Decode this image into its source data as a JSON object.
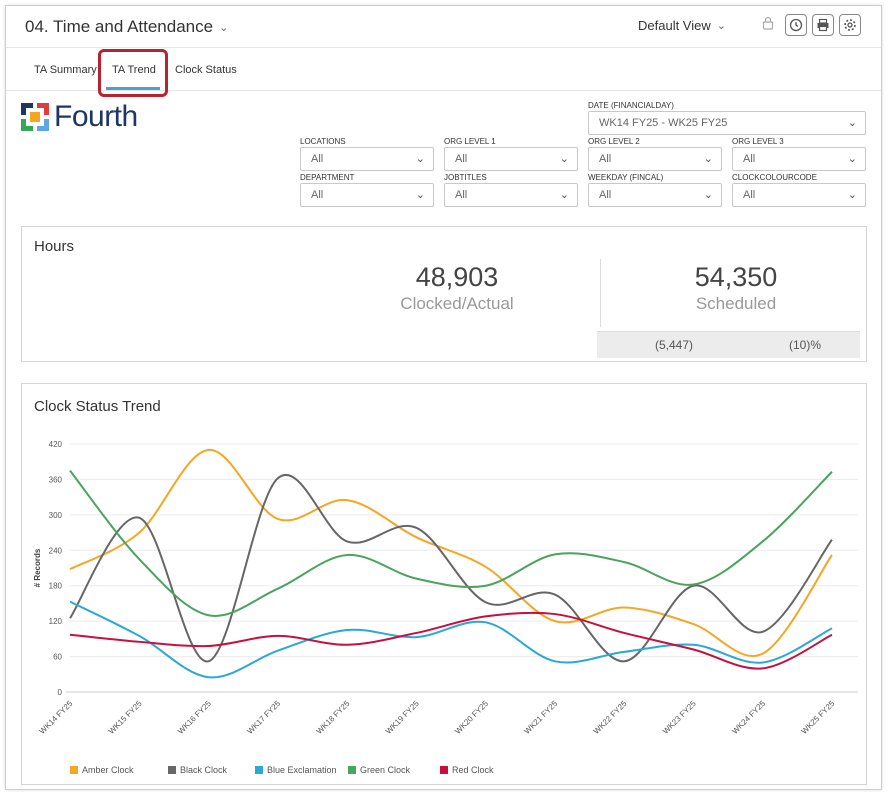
{
  "header": {
    "title": "04. Time and Attendance",
    "view_label": "Default View"
  },
  "tabs": [
    {
      "label": "TA Summary"
    },
    {
      "label": "TA Trend"
    },
    {
      "label": "Clock Status"
    }
  ],
  "logo": {
    "text": "Fourth"
  },
  "filters": {
    "date": {
      "label": "DATE (FINANCIALDAY)",
      "value": "WK14 FY25 - WK25 FY25"
    },
    "locations": {
      "label": "LOCATIONS",
      "value": "All"
    },
    "org_level_1": {
      "label": "ORG LEVEL 1",
      "value": "All"
    },
    "org_level_2": {
      "label": "ORG LEVEL 2",
      "value": "All"
    },
    "org_level_3": {
      "label": "ORG LEVEL 3",
      "value": "All"
    },
    "department": {
      "label": "DEPARTMENT",
      "value": "All"
    },
    "jobtitles": {
      "label": "JOBTITLES",
      "value": "All"
    },
    "weekday": {
      "label": "WEEKDAY (FINCAL)",
      "value": "All"
    },
    "clockcolourcode": {
      "label": "CLOCKCOLOURCODE",
      "value": "All"
    }
  },
  "hours": {
    "title": "Hours",
    "clocked_value": "48,903",
    "clocked_label": "Clocked/Actual",
    "scheduled_value": "54,350",
    "scheduled_label": "Scheduled",
    "variance": "(5,447)",
    "variance_pct": "(10)%"
  },
  "trend_panel": {
    "title": "Clock Status Trend"
  },
  "chart_data": {
    "type": "line",
    "title": "Clock Status Trend",
    "ylabel": "# Records",
    "xlabel": "",
    "ylim": [
      0,
      420
    ],
    "yticks": [
      0,
      60,
      120,
      180,
      240,
      300,
      360,
      420
    ],
    "x": [
      "WK14 FY25",
      "WK15 FY25",
      "WK16 FY25",
      "WK17 FY25",
      "WK18 FY25",
      "WK19 FY25",
      "WK20 FY25",
      "WK21 FY25",
      "WK22 FY25",
      "WK23 FY25",
      "WK24 FY25",
      "WK25 FY25"
    ],
    "series": [
      {
        "name": "Amber Clock",
        "color": "#f5a623",
        "values": [
          208,
          270,
          410,
          293,
          325,
          262,
          212,
          120,
          143,
          115,
          65,
          232
        ]
      },
      {
        "name": "Black Clock",
        "color": "#666666",
        "values": [
          125,
          295,
          52,
          362,
          255,
          278,
          152,
          165,
          52,
          180,
          102,
          258
        ]
      },
      {
        "name": "Blue Exclamation",
        "color": "#2aa8d8",
        "values": [
          153,
          95,
          25,
          70,
          105,
          93,
          118,
          52,
          68,
          80,
          50,
          108
        ]
      },
      {
        "name": "Green Clock",
        "color": "#4aa35e",
        "values": [
          375,
          225,
          130,
          175,
          232,
          192,
          180,
          233,
          220,
          182,
          255,
          373
        ]
      },
      {
        "name": "Red Clock",
        "color": "#c8103e",
        "values": [
          97,
          85,
          78,
          95,
          80,
          100,
          128,
          132,
          100,
          72,
          40,
          97
        ]
      }
    ],
    "grid": true,
    "legend": "bottom-left"
  }
}
